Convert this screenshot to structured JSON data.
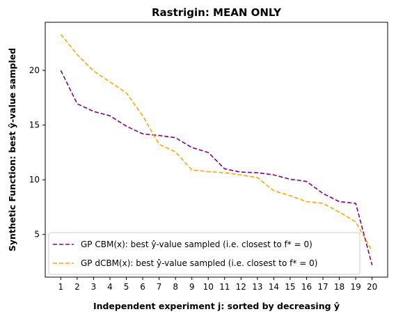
{
  "chart_data": {
    "type": "line",
    "title": "Rastrigin: MEAN ONLY",
    "xlabel": "Independent experiment j: sorted by decreasing ŷ",
    "ylabel": "Synthetic Function: best ŷ-value sampled",
    "x": [
      1,
      2,
      3,
      4,
      5,
      6,
      7,
      8,
      9,
      10,
      11,
      12,
      13,
      14,
      15,
      16,
      17,
      18,
      19,
      20
    ],
    "xlim": [
      0.05,
      20.95
    ],
    "ylim": [
      1.1,
      24.4
    ],
    "yticks": [
      5,
      10,
      15,
      20
    ],
    "grid": false,
    "legend_position": "lower-left",
    "series": [
      {
        "name": "GP CBM(x):   best ŷ-value sampled (i.e. closest to f* = 0)",
        "color": "#800080",
        "style": "dashed",
        "values": [
          20.0,
          16.95,
          16.25,
          15.85,
          14.9,
          14.2,
          14.05,
          13.85,
          12.95,
          12.5,
          11.0,
          10.7,
          10.65,
          10.45,
          10.05,
          9.85,
          8.75,
          8.0,
          7.85,
          2.2
        ]
      },
      {
        "name": "GP dCBM(x): best ŷ-value sampled (i.e. closest to f* = 0)",
        "color": "#FFA500",
        "style": "dashed",
        "values": [
          23.3,
          21.45,
          19.95,
          18.95,
          17.95,
          15.85,
          13.25,
          12.55,
          10.9,
          10.75,
          10.65,
          10.45,
          10.2,
          9.0,
          8.55,
          8.0,
          7.85,
          7.05,
          6.15,
          3.5
        ]
      }
    ]
  }
}
